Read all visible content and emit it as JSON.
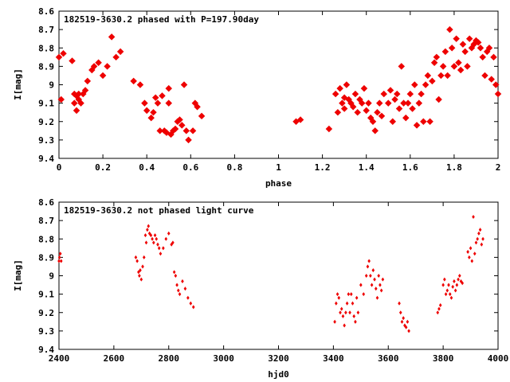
{
  "chart_data": [
    {
      "type": "scatter",
      "title": "182519-3630.2 phased with P=197.90day",
      "xlabel": "phase",
      "ylabel": "I[mag]",
      "xlim": [
        0,
        2
      ],
      "ylim": [
        8.6,
        9.4
      ],
      "y_inverted": true,
      "x_ticks": [
        "0",
        "0.2",
        "0.4",
        "0.6",
        "0.8",
        "1",
        "1.2",
        "1.4",
        "1.6",
        "1.8",
        "2"
      ],
      "y_ticks": [
        "8.6",
        "8.7",
        "8.8",
        "8.9",
        "9",
        "9.1",
        "9.2",
        "9.3",
        "9.4"
      ],
      "grid": false,
      "marker_color": "#ee0000",
      "series": [
        {
          "x": [
            0.0,
            0.01,
            0.02,
            0.06,
            0.07,
            0.07,
            0.08,
            0.08,
            0.09,
            0.09,
            0.1,
            0.11,
            0.12,
            0.13,
            0.15,
            0.16,
            0.18,
            0.2,
            0.22,
            0.24,
            0.26,
            0.28,
            0.34,
            0.37,
            0.39,
            0.4,
            0.42,
            0.43,
            0.44,
            0.45,
            0.46,
            0.47,
            0.48,
            0.49,
            0.5,
            0.5,
            0.51,
            0.52,
            0.53,
            0.54,
            0.55,
            0.56,
            0.57,
            0.58,
            0.59,
            0.61,
            0.62,
            0.63,
            0.65,
            1.08,
            1.1,
            1.23,
            1.26,
            1.27,
            1.28,
            1.29,
            1.3,
            1.3,
            1.31,
            1.32,
            1.33,
            1.34,
            1.35,
            1.36,
            1.37,
            1.38,
            1.39,
            1.4,
            1.41,
            1.42,
            1.43,
            1.44,
            1.45,
            1.46,
            1.47,
            1.48,
            1.5,
            1.51,
            1.52,
            1.53,
            1.54,
            1.55,
            1.56,
            1.57,
            1.58,
            1.59,
            1.6,
            1.61,
            1.62,
            1.63,
            1.64,
            1.65,
            1.66,
            1.67,
            1.68,
            1.69,
            1.7,
            1.71,
            1.72,
            1.73,
            1.74,
            1.75,
            1.76,
            1.77,
            1.78,
            1.79,
            1.8,
            1.81,
            1.82,
            1.83,
            1.84,
            1.85,
            1.86,
            1.87,
            1.88,
            1.89,
            1.9,
            1.91,
            1.92,
            1.93,
            1.94,
            1.95,
            1.96,
            1.97,
            1.98,
            1.99,
            2.0
          ],
          "y": [
            8.85,
            9.08,
            8.83,
            8.87,
            9.05,
            9.1,
            9.14,
            9.06,
            9.05,
            9.08,
            9.1,
            9.05,
            9.03,
            8.98,
            8.92,
            8.9,
            8.88,
            8.95,
            8.9,
            8.74,
            8.85,
            8.82,
            8.98,
            9.0,
            9.1,
            9.14,
            9.18,
            9.15,
            9.07,
            9.1,
            9.25,
            9.06,
            9.25,
            9.26,
            9.02,
            9.1,
            9.27,
            9.25,
            9.24,
            9.2,
            9.19,
            9.22,
            9.0,
            9.25,
            9.3,
            9.25,
            9.1,
            9.12,
            9.17,
            9.2,
            9.19,
            9.24,
            9.05,
            9.15,
            9.02,
            9.1,
            9.07,
            9.13,
            9.0,
            9.08,
            9.1,
            9.12,
            9.05,
            9.15,
            9.08,
            9.1,
            9.02,
            9.14,
            9.1,
            9.18,
            9.2,
            9.25,
            9.15,
            9.1,
            9.17,
            9.05,
            9.1,
            9.03,
            9.2,
            9.08,
            9.05,
            9.13,
            8.9,
            9.1,
            9.18,
            9.1,
            9.05,
            9.13,
            9.0,
            9.22,
            9.1,
            9.05,
            9.2,
            9.0,
            8.95,
            9.2,
            8.98,
            8.88,
            8.85,
            9.08,
            8.95,
            8.9,
            8.82,
            8.95,
            8.7,
            8.8,
            8.9,
            8.75,
            8.88,
            8.92,
            8.78,
            8.82,
            8.9,
            8.75,
            8.8,
            8.78,
            8.76,
            8.77,
            8.8,
            8.85,
            8.95,
            8.82,
            8.8,
            8.97,
            8.85,
            9.0,
            9.05
          ]
        }
      ]
    },
    {
      "type": "scatter",
      "title": "182519-3630.2 not phased light curve",
      "xlabel": "hjd0",
      "ylabel": "I[mag]",
      "xlim": [
        2400,
        4000
      ],
      "ylim": [
        8.6,
        9.4
      ],
      "y_inverted": true,
      "x_ticks": [
        "2400",
        "2600",
        "2800",
        "3000",
        "3200",
        "3400",
        "3600",
        "3800",
        "4000"
      ],
      "y_ticks": [
        "8.6",
        "8.7",
        "8.8",
        "8.9",
        "9",
        "9.1",
        "9.2",
        "9.3",
        "9.4"
      ],
      "grid": false,
      "marker_color": "#ee0000",
      "series": [
        {
          "x": [
            2400,
            2402,
            2405,
            2408,
            2680,
            2685,
            2690,
            2693,
            2696,
            2700,
            2705,
            2710,
            2715,
            2718,
            2722,
            2726,
            2730,
            2735,
            2740,
            2745,
            2750,
            2755,
            2760,
            2765,
            2770,
            2780,
            2790,
            2800,
            2810,
            2815,
            2820,
            2825,
            2830,
            2835,
            2840,
            2850,
            2860,
            2870,
            2880,
            2890,
            3405,
            3410,
            3415,
            3420,
            3425,
            3430,
            3435,
            3440,
            3445,
            3450,
            3455,
            3460,
            3465,
            3470,
            3475,
            3480,
            3485,
            3490,
            3500,
            3510,
            3520,
            3525,
            3530,
            3535,
            3540,
            3545,
            3550,
            3555,
            3560,
            3565,
            3570,
            3575,
            3580,
            3640,
            3645,
            3650,
            3655,
            3660,
            3665,
            3670,
            3675,
            3780,
            3785,
            3790,
            3800,
            3805,
            3810,
            3815,
            3820,
            3825,
            3830,
            3835,
            3840,
            3845,
            3850,
            3855,
            3860,
            3865,
            3870,
            3890,
            3895,
            3900,
            3905,
            3910,
            3915,
            3920,
            3925,
            3930,
            3935,
            3940,
            3945
          ],
          "y": [
            8.92,
            8.9,
            8.88,
            8.92,
            8.9,
            8.92,
            8.98,
            9.0,
            8.97,
            9.02,
            8.95,
            8.9,
            8.78,
            8.82,
            8.75,
            8.73,
            8.77,
            8.78,
            8.8,
            8.82,
            8.78,
            8.8,
            8.83,
            8.85,
            8.88,
            8.85,
            8.8,
            8.77,
            8.83,
            8.82,
            8.98,
            9.0,
            9.05,
            9.08,
            9.1,
            9.03,
            9.07,
            9.12,
            9.15,
            9.17,
            9.25,
            9.15,
            9.1,
            9.12,
            9.2,
            9.18,
            9.22,
            9.27,
            9.2,
            9.15,
            9.1,
            9.2,
            9.1,
            9.15,
            9.22,
            9.25,
            9.12,
            9.2,
            9.05,
            9.1,
            9.0,
            8.95,
            8.92,
            9.0,
            9.05,
            8.97,
            9.02,
            9.07,
            9.12,
            9.0,
            9.05,
            9.08,
            9.02,
            9.15,
            9.2,
            9.25,
            9.23,
            9.27,
            9.28,
            9.25,
            9.3,
            9.2,
            9.18,
            9.16,
            9.05,
            9.02,
            9.1,
            9.08,
            9.05,
            9.1,
            9.12,
            9.06,
            9.03,
            9.08,
            9.05,
            9.02,
            9.0,
            9.03,
            9.04,
            8.87,
            8.9,
            8.85,
            8.92,
            8.68,
            8.88,
            8.82,
            8.8,
            8.77,
            8.75,
            8.83,
            8.8
          ]
        }
      ]
    }
  ]
}
